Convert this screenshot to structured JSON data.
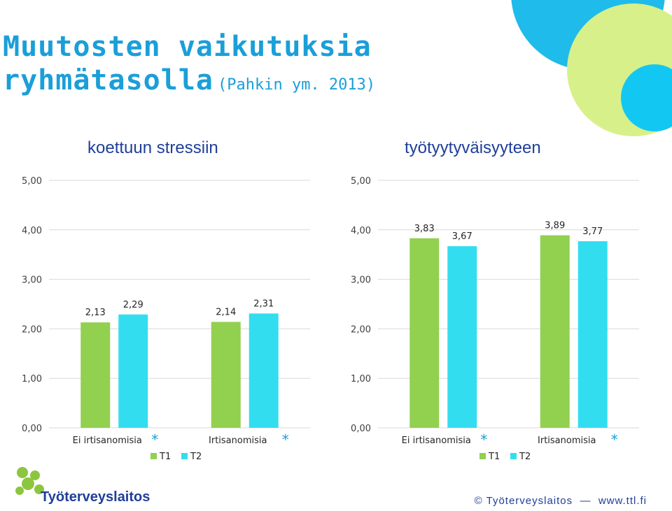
{
  "slide": {
    "title_line1": "Muutosten vaikutuksia",
    "title_line2": "ryhmätasolla",
    "citation": "(Pahkin ym. 2013)",
    "footer": "© Työterveyslaitos  —  www.ttl.fi",
    "logo_text": "Työterveyslaitos"
  },
  "colors": {
    "T1": "#92d050",
    "T2": "#33ddf0",
    "title": "#1a9fd8",
    "logo": "#8cc63f"
  },
  "chart_data": [
    {
      "type": "bar",
      "title": "koettuun stressiin",
      "categories": [
        "Ei irtisanomisia",
        "Irtisanomisia"
      ],
      "category_marks": [
        "*",
        "*"
      ],
      "series": [
        {
          "name": "T1",
          "values": [
            2.13,
            2.14
          ]
        },
        {
          "name": "T2",
          "values": [
            2.29,
            2.31
          ]
        }
      ],
      "data_labels": [
        [
          "2,13",
          "2,14"
        ],
        [
          "2,29",
          "2,31"
        ]
      ],
      "yticks": [
        "0,00",
        "1,00",
        "2,00",
        "3,00",
        "4,00",
        "5,00"
      ],
      "ylim": [
        0,
        5
      ],
      "grid": true,
      "legend": "bottom"
    },
    {
      "type": "bar",
      "title": "työtyytyväisyyteen",
      "categories": [
        "Ei irtisanomisia",
        "Irtisanomisia"
      ],
      "category_marks": [
        "*",
        "*"
      ],
      "series": [
        {
          "name": "T1",
          "values": [
            3.83,
            3.89
          ]
        },
        {
          "name": "T2",
          "values": [
            3.67,
            3.77
          ]
        }
      ],
      "data_labels": [
        [
          "3,83",
          "3,89"
        ],
        [
          "3,67",
          "3,77"
        ]
      ],
      "yticks": [
        "0,00",
        "1,00",
        "2,00",
        "3,00",
        "4,00",
        "5,00"
      ],
      "ylim": [
        0,
        5
      ],
      "grid": true,
      "legend": "bottom"
    }
  ]
}
